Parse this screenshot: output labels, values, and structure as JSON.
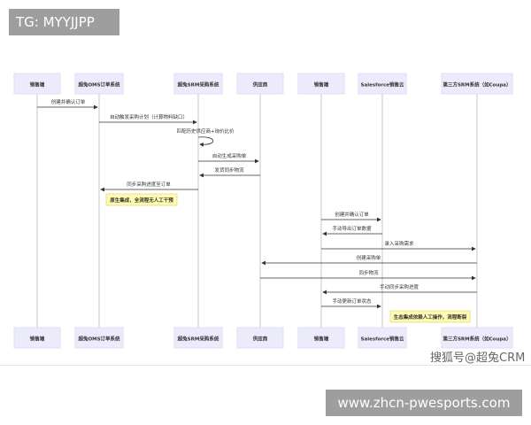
{
  "overlay_label": "TG: MYYJJPP",
  "watermark": "www.zhcn-pwesports.com",
  "source_credit": "搜狐号@超兔CRM",
  "colors": {
    "actor_fill": "#ecebfb",
    "lifeline": "#d8d8e0",
    "note_fill": "#fffbb0",
    "note_border": "#d9d36a",
    "arrow": "#333333"
  },
  "actors": [
    "销售端",
    "超兔OMS订单系统",
    "超兔SRM采购系统",
    "供应商",
    "销售端",
    "Salesforce销售云",
    "第三方SRM系统（如Coupa）"
  ],
  "messages": [
    {
      "from": 0,
      "to": 1,
      "text": "创建并确认订单"
    },
    {
      "from": 1,
      "to": 2,
      "text": "自动触发采购计划（计算物料缺口）"
    },
    {
      "from": 2,
      "to": 2,
      "text": "匹配历史供应商+询价比价"
    },
    {
      "from": 2,
      "to": 3,
      "text": "自动生成采购单"
    },
    {
      "from": 3,
      "to": 2,
      "text": "发货同步物流"
    },
    {
      "from": 2,
      "to": 1,
      "text": "同步采购进度至订单"
    },
    {
      "from": 4,
      "to": 5,
      "text": "创建并确认订单"
    },
    {
      "from": 5,
      "to": 4,
      "text": "手动导出订单数据"
    },
    {
      "from": 4,
      "to": 6,
      "text": "录入采购需求"
    },
    {
      "from": 6,
      "to": 3,
      "text": "创建采购单"
    },
    {
      "from": 3,
      "to": 6,
      "text": "同步物流"
    },
    {
      "from": 6,
      "to": 4,
      "text": "手动同步采购进度"
    },
    {
      "from": 4,
      "to": 5,
      "text": "手动更新订单状态"
    }
  ],
  "notes": [
    "原生集成，全流程无人工干预",
    "生态集成依赖人工操作，流程断裂"
  ]
}
